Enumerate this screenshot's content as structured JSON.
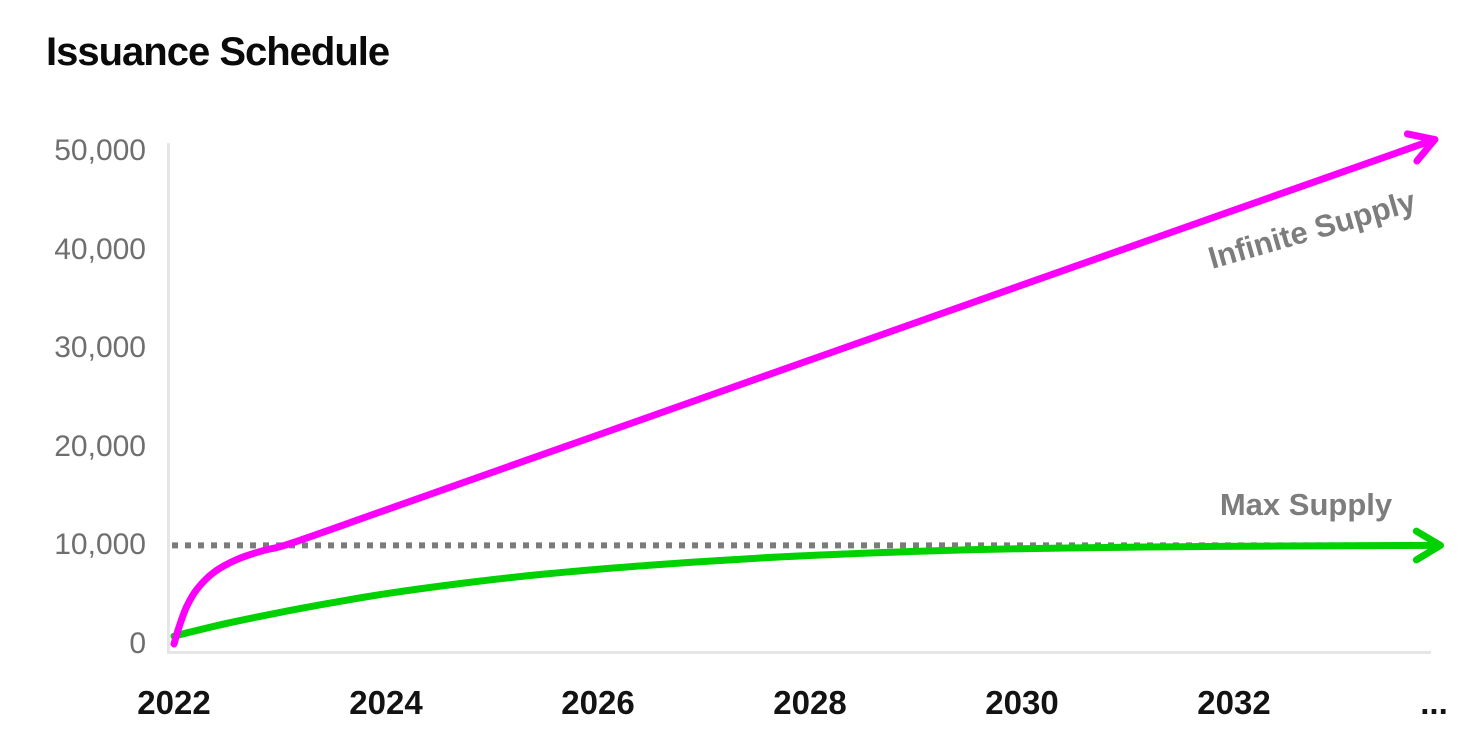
{
  "chart_data": {
    "type": "line",
    "title": "Issuance Schedule",
    "xlabel": "",
    "ylabel": "",
    "grid": false,
    "legend": "inline-labels-on-chart",
    "x_axis": {
      "tick_labels": [
        "2022",
        "2024",
        "2026",
        "2028",
        "2030",
        "2032"
      ],
      "tick_years": [
        2022,
        2024,
        2026,
        2028,
        2030,
        2032
      ],
      "continuation_label": "...",
      "range": [
        2022,
        2034
      ]
    },
    "y_axis": {
      "tick_labels": [
        "0",
        "10,000",
        "20,000",
        "30,000",
        "40,000",
        "50,000"
      ],
      "tick_values": [
        0,
        10000,
        20000,
        30000,
        40000,
        50000
      ],
      "range": [
        0,
        50000
      ]
    },
    "reference_line": {
      "value": 10000,
      "style": "dotted",
      "color": "#7b7b7b"
    },
    "series": [
      {
        "name": "Infinite Supply",
        "color": "#fb00fb",
        "style": "solid",
        "arrow_end": true,
        "points": [
          [
            2022.0,
            0
          ],
          [
            2022.05,
            1800
          ],
          [
            2022.12,
            3800
          ],
          [
            2022.22,
            5600
          ],
          [
            2022.38,
            7300
          ],
          [
            2022.6,
            8600
          ],
          [
            2022.85,
            9500
          ],
          [
            2023.1,
            10200
          ],
          [
            2024.0,
            13600
          ],
          [
            2026.0,
            21200
          ],
          [
            2028.0,
            28800
          ],
          [
            2030.0,
            36400
          ],
          [
            2032.0,
            44000
          ],
          [
            2033.85,
            51000
          ]
        ]
      },
      {
        "name": "Max Supply",
        "color": "#00d100",
        "style": "solid",
        "arrow_end": true,
        "points": [
          [
            2022.0,
            800
          ],
          [
            2022.5,
            2100
          ],
          [
            2023.0,
            3200
          ],
          [
            2023.5,
            4200
          ],
          [
            2024.0,
            5100
          ],
          [
            2024.75,
            6200
          ],
          [
            2025.5,
            7100
          ],
          [
            2026.5,
            8000
          ],
          [
            2027.5,
            8700
          ],
          [
            2028.5,
            9200
          ],
          [
            2029.5,
            9550
          ],
          [
            2030.5,
            9750
          ],
          [
            2031.5,
            9870
          ],
          [
            2032.5,
            9940
          ],
          [
            2033.9,
            10000
          ]
        ]
      }
    ],
    "colors": {
      "magenta_line": "#fb00fb",
      "green_line": "#00d100",
      "axis_line": "#e6e6e6",
      "dotted_line": "#7b7b7b",
      "y_tick_text": "#6f6f6f",
      "x_tick_text": "#131313",
      "series_label_text": "#7d7d7d",
      "title_text": "#0a0a0a"
    }
  }
}
